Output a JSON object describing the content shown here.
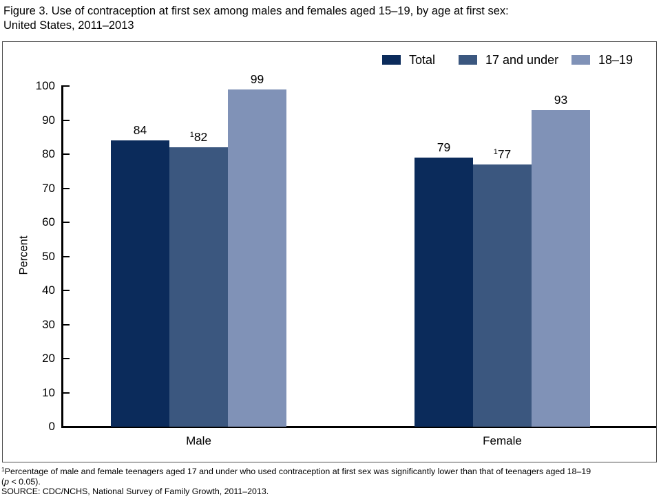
{
  "figure": {
    "title_line1": "Figure 3. Use of contraception at first sex among males and females aged 15–19, by age at first sex:",
    "title_line2": "United States, 2011–2013"
  },
  "legend": {
    "items": [
      {
        "label": "Total",
        "color": "#0b2b5b",
        "icon": "swatch"
      },
      {
        "label": "17 and under",
        "color": "#3b577f",
        "icon": "swatch"
      },
      {
        "label": "18–19",
        "color": "#8092b7",
        "icon": "swatch"
      }
    ]
  },
  "chart_data": {
    "type": "bar",
    "categories": [
      "Male",
      "Female"
    ],
    "series": [
      {
        "name": "Total",
        "values": [
          84,
          79
        ],
        "color": "#0b2b5b",
        "superscript": ""
      },
      {
        "name": "17 and under",
        "values": [
          82,
          77
        ],
        "color": "#3b577f",
        "superscript": "1"
      },
      {
        "name": "18–19",
        "values": [
          99,
          93
        ],
        "color": "#8092b7",
        "superscript": ""
      }
    ],
    "title": "Use of contraception at first sex among males and females aged 15–19, by age at first sex: United States, 2011–2013",
    "xlabel": "",
    "ylabel": "Percent",
    "ylim": [
      0,
      100
    ],
    "yticks": [
      0,
      10,
      20,
      30,
      40,
      50,
      60,
      70,
      80,
      90,
      100
    ],
    "grid": false,
    "legend_position": "top-right"
  },
  "footnote": {
    "marker": "1",
    "line1": "Percentage of male and female teenagers aged 17 and under who used contraception at first sex was significantly lower than that of teenagers aged 18–19",
    "line2_open": "(",
    "line2_italic": "p",
    "line2_rest": " < 0.05).",
    "source": "SOURCE: CDC/NCHS, National Survey of Family Growth, 2011–2013."
  }
}
